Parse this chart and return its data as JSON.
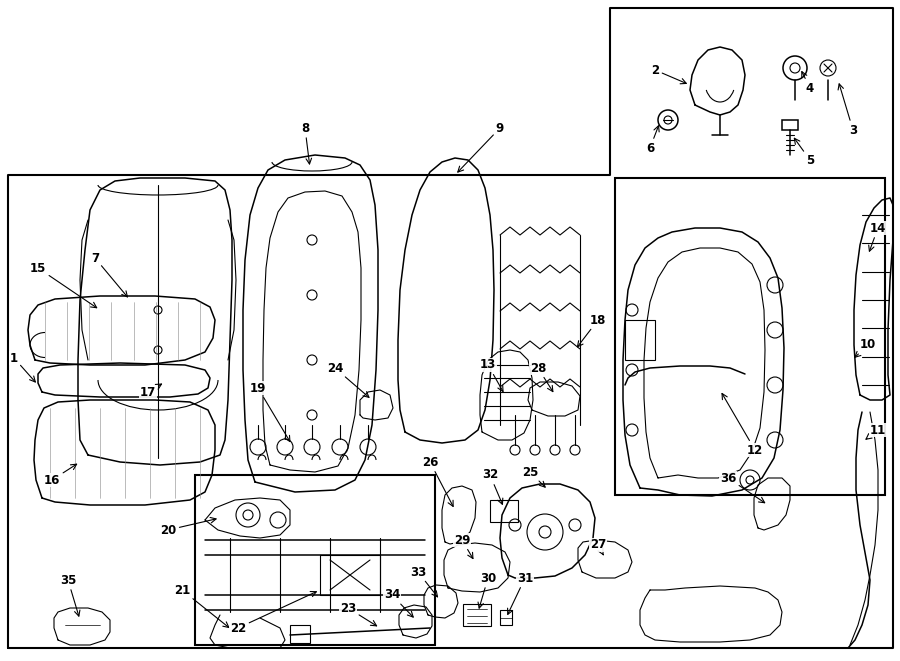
{
  "bg": "#ffffff",
  "lc": "#000000",
  "lw_main": 1.5,
  "lw_thin": 0.8,
  "lw_med": 1.1,
  "fig_w": 9.0,
  "fig_h": 6.61,
  "dpi": 100
}
